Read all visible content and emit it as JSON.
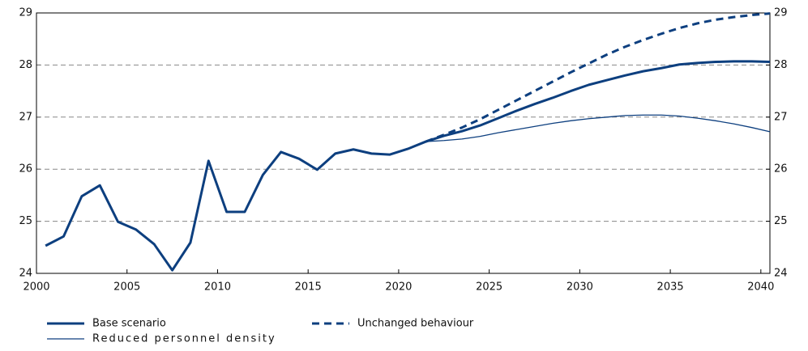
{
  "chart_data": {
    "type": "line",
    "x": [
      2000.5,
      2001.5,
      2002.5,
      2003.5,
      2004.5,
      2005.5,
      2006.5,
      2007.5,
      2008.5,
      2009.5,
      2010.5,
      2011.5,
      2012.5,
      2013.5,
      2014.5,
      2015.5,
      2016.5,
      2017.5,
      2018.5,
      2019.5,
      2020.5,
      2021.5,
      2022.5,
      2023.5,
      2024.5,
      2025.5,
      2026.5,
      2027.5,
      2028.5,
      2029.5,
      2030.5,
      2031.5,
      2032.5,
      2033.5,
      2034.5,
      2035.5,
      2036.5,
      2037.5,
      2038.5,
      2039.5,
      2040.5
    ],
    "series": [
      {
        "name": "Base scenario",
        "color": "#0d3f7f",
        "linewidth": 3,
        "dashed": false,
        "values": [
          24.53,
          24.71,
          25.48,
          25.69,
          24.99,
          24.84,
          24.56,
          24.06,
          24.59,
          26.16,
          25.18,
          25.18,
          25.89,
          26.33,
          26.2,
          25.99,
          26.3,
          26.38,
          26.3,
          26.28,
          26.39,
          26.53,
          26.64,
          26.73,
          26.84,
          26.98,
          27.12,
          27.25,
          27.37,
          27.5,
          27.62,
          27.71,
          27.8,
          27.88,
          27.94,
          28.01,
          28.04,
          28.06,
          28.07,
          28.07,
          28.06
        ]
      },
      {
        "name": "Unchanged behaviour",
        "color": "#0d3f7f",
        "linewidth": 3,
        "dashed": true,
        "values": [
          null,
          null,
          null,
          null,
          null,
          null,
          null,
          null,
          null,
          null,
          null,
          null,
          null,
          null,
          null,
          null,
          null,
          null,
          null,
          null,
          null,
          26.53,
          26.66,
          26.8,
          26.96,
          27.14,
          27.32,
          27.5,
          27.68,
          27.86,
          28.03,
          28.2,
          28.35,
          28.48,
          28.6,
          28.71,
          28.8,
          28.87,
          28.92,
          28.96,
          28.99
        ]
      },
      {
        "name": "Reduced personnel density",
        "color": "#0d3f7f",
        "linewidth": 1.3,
        "dashed": false,
        "values": [
          null,
          null,
          null,
          null,
          null,
          null,
          null,
          null,
          null,
          null,
          null,
          null,
          null,
          null,
          null,
          null,
          null,
          null,
          null,
          null,
          null,
          26.53,
          26.55,
          26.58,
          26.63,
          26.7,
          26.76,
          26.82,
          26.88,
          26.93,
          26.97,
          27.0,
          27.03,
          27.04,
          27.04,
          27.02,
          26.98,
          26.93,
          26.87,
          26.8,
          26.72
        ]
      }
    ],
    "xlim": [
      2000,
      2040.5
    ],
    "xticks": [
      2000,
      2005,
      2010,
      2015,
      2020,
      2025,
      2030,
      2035,
      2040
    ],
    "ylim": [
      24,
      29
    ],
    "yticks": [
      24,
      25,
      26,
      27,
      28,
      29
    ],
    "y2lim": [
      24,
      29
    ],
    "y2ticks": [
      24,
      25,
      26,
      27,
      28,
      29
    ],
    "grid": true,
    "legend": "bottom"
  }
}
